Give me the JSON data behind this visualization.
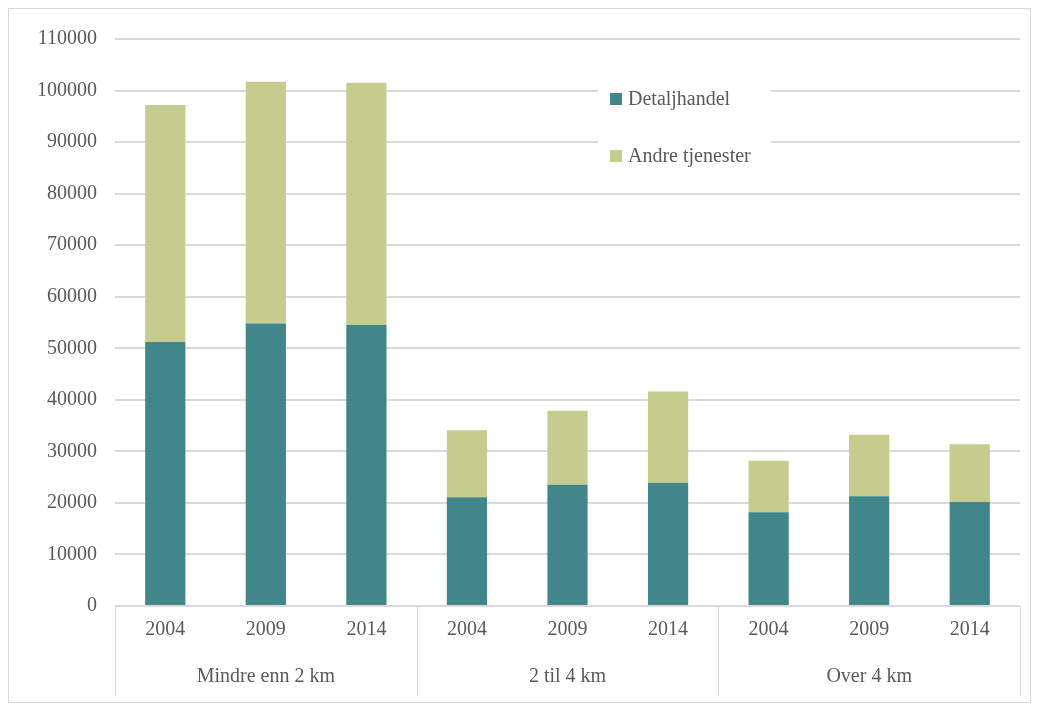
{
  "chart_data": {
    "type": "bar",
    "stacked": true,
    "categories": [
      "2004",
      "2009",
      "2014",
      "2004",
      "2009",
      "2014",
      "2004",
      "2009",
      "2014"
    ],
    "series": [
      {
        "name": "Detaljhandel",
        "color": "#40868a",
        "values": [
          51200,
          54800,
          54500,
          21100,
          23500,
          23900,
          18200,
          21300,
          20200
        ]
      },
      {
        "name": "Andre tjenester",
        "color": "#c5cc8e",
        "values": [
          46000,
          46900,
          47000,
          13000,
          14400,
          17700,
          10000,
          11900,
          11200
        ]
      }
    ],
    "ylim": [
      0,
      110000
    ],
    "yticks": [
      0,
      10000,
      20000,
      30000,
      40000,
      50000,
      60000,
      70000,
      80000,
      90000,
      100000,
      110000
    ],
    "grid": "y",
    "legend": "top right",
    "annotations": [
      "Mindre enn 2 km",
      "2 til 4 km",
      "Over 4 km"
    ]
  }
}
